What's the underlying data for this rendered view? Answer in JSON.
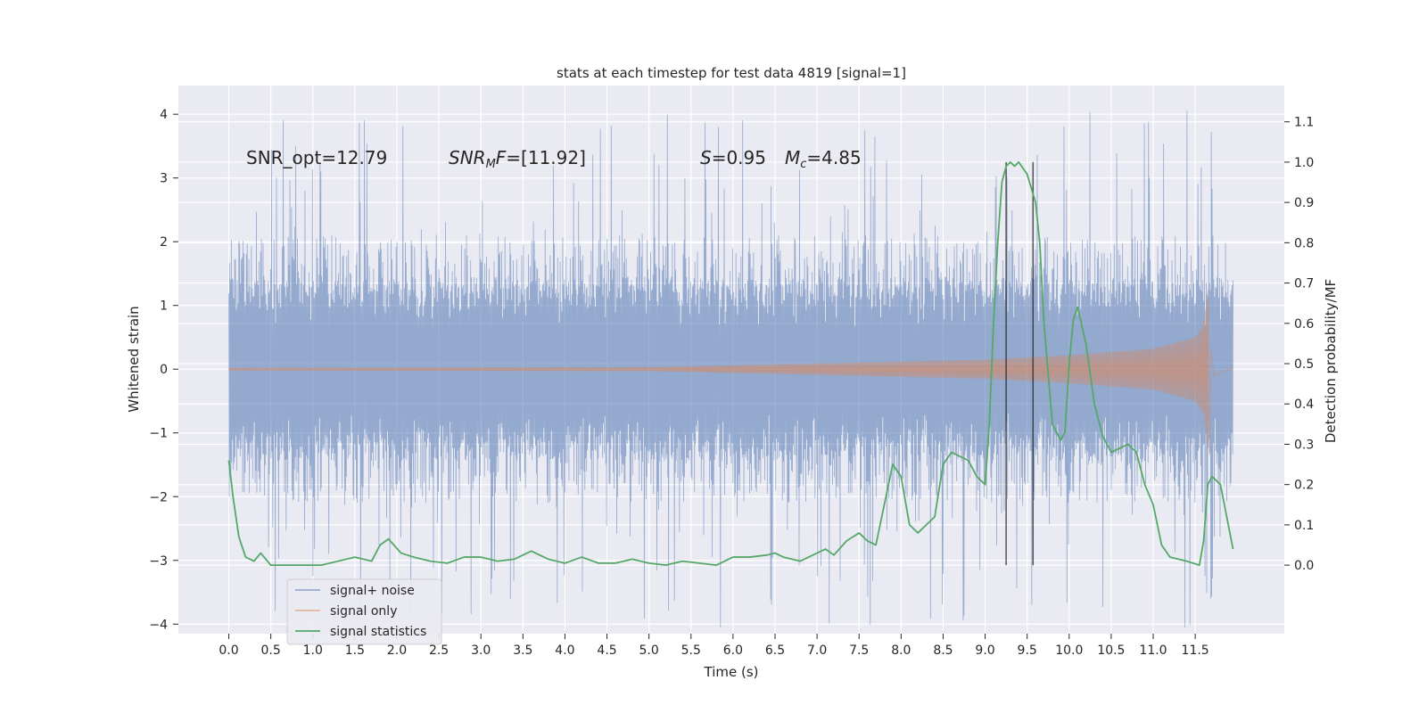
{
  "chart_data": {
    "type": "line",
    "title": "stats at each timestep for test data 4819 [signal=1]",
    "xlabel": "Time (s)",
    "ylabel": "Whitened strain",
    "y2label": "Detection probability/MF",
    "xlim": [
      -0.6,
      12.56
    ],
    "ylim": [
      -4.15,
      4.45
    ],
    "y2lim": [
      -0.17,
      1.19
    ],
    "xticks": [
      "0.0",
      "0.5",
      "1.0",
      "1.5",
      "2.0",
      "2.5",
      "3.0",
      "3.5",
      "4.0",
      "4.5",
      "5.0",
      "5.5",
      "6.0",
      "6.5",
      "7.0",
      "7.5",
      "8.0",
      "8.5",
      "9.0",
      "9.5",
      "10.0",
      "10.5",
      "11.0",
      "11.5"
    ],
    "yticks": [
      4,
      3,
      2,
      1,
      0,
      -1,
      -2,
      -3,
      -4
    ],
    "y2ticks": [
      "1.1",
      "1.0",
      "0.9",
      "0.8",
      "0.7",
      "0.6",
      "0.5",
      "0.4",
      "0.3",
      "0.2",
      "0.1",
      "0.0"
    ],
    "annotations": {
      "snr_opt": "SNR_opt=12.79",
      "snr_mf_label": "SNR",
      "snr_mf_sub": "M",
      "snr_mf_f": "F",
      "snr_mf_value": "=[11.92]",
      "s_label": "S",
      "s_value": "=0.95",
      "mc_label": "M",
      "mc_sub": "c",
      "mc_value": "=4.85"
    },
    "legend": {
      "location": "lower-left",
      "entries": [
        {
          "label": "signal+ noise",
          "color": "#4c72b0"
        },
        {
          "label": "signal only",
          "color": "#dd8452"
        },
        {
          "label": "signal statistics",
          "color": "#55a868"
        }
      ]
    },
    "series": [
      {
        "name": "signal+ noise",
        "color": "#4c72b0",
        "alpha": 0.5,
        "duration": 11.95,
        "envelope": {
          "typical": 1.45,
          "peak_range": [
            2.0,
            4.1
          ]
        }
      },
      {
        "name": "signal only",
        "color": "#dd8452",
        "alpha": 0.5,
        "chirp_end": 11.65,
        "amplitude_points": [
          [
            0.0,
            0.02
          ],
          [
            5.0,
            0.03
          ],
          [
            7.0,
            0.09
          ],
          [
            9.0,
            0.15
          ],
          [
            10.0,
            0.22
          ],
          [
            11.0,
            0.32
          ],
          [
            11.5,
            0.5
          ],
          [
            11.6,
            0.7
          ],
          [
            11.65,
            1.25
          ]
        ],
        "ringdown_min": -1.35
      },
      {
        "name": "signal statistics",
        "color": "#55a868",
        "axis": "right",
        "x": [
          0.0,
          0.05,
          0.12,
          0.2,
          0.3,
          0.38,
          0.5,
          0.7,
          0.9,
          1.1,
          1.3,
          1.5,
          1.7,
          1.8,
          1.9,
          2.05,
          2.2,
          2.4,
          2.6,
          2.8,
          3.0,
          3.2,
          3.4,
          3.6,
          3.8,
          4.0,
          4.2,
          4.4,
          4.6,
          4.8,
          5.0,
          5.2,
          5.4,
          5.6,
          5.8,
          6.0,
          6.2,
          6.4,
          6.5,
          6.6,
          6.8,
          7.0,
          7.1,
          7.2,
          7.35,
          7.5,
          7.6,
          7.7,
          7.8,
          7.9,
          8.0,
          8.1,
          8.2,
          8.4,
          8.5,
          8.6,
          8.7,
          8.8,
          8.9,
          9.0,
          9.05,
          9.1,
          9.15,
          9.2,
          9.25,
          9.3,
          9.35,
          9.4,
          9.5,
          9.6,
          9.65,
          9.7,
          9.8,
          9.9,
          9.95,
          10.0,
          10.05,
          10.1,
          10.2,
          10.3,
          10.4,
          10.5,
          10.6,
          10.7,
          10.8,
          10.9,
          11.0,
          11.1,
          11.2,
          11.4,
          11.55,
          11.6,
          11.65,
          11.7,
          11.8,
          11.95
        ],
        "y": [
          0.26,
          0.17,
          0.07,
          0.02,
          0.01,
          0.03,
          0.0,
          0.0,
          0.0,
          0.0,
          0.01,
          0.02,
          0.01,
          0.05,
          0.065,
          0.03,
          0.02,
          0.01,
          0.005,
          0.02,
          0.02,
          0.01,
          0.015,
          0.035,
          0.015,
          0.005,
          0.02,
          0.005,
          0.005,
          0.015,
          0.005,
          0.0,
          0.01,
          0.005,
          0.0,
          0.02,
          0.02,
          0.025,
          0.03,
          0.02,
          0.01,
          0.03,
          0.04,
          0.025,
          0.06,
          0.08,
          0.06,
          0.05,
          0.15,
          0.25,
          0.22,
          0.1,
          0.08,
          0.12,
          0.25,
          0.28,
          0.27,
          0.26,
          0.22,
          0.2,
          0.35,
          0.6,
          0.8,
          0.95,
          0.99,
          1.0,
          0.99,
          1.0,
          0.97,
          0.9,
          0.8,
          0.6,
          0.35,
          0.31,
          0.33,
          0.5,
          0.61,
          0.64,
          0.55,
          0.4,
          0.32,
          0.28,
          0.29,
          0.3,
          0.28,
          0.2,
          0.15,
          0.05,
          0.02,
          0.01,
          0.0,
          0.06,
          0.2,
          0.22,
          0.2,
          0.04
        ]
      }
    ],
    "vertical_markers": [
      9.25,
      9.57
    ]
  }
}
